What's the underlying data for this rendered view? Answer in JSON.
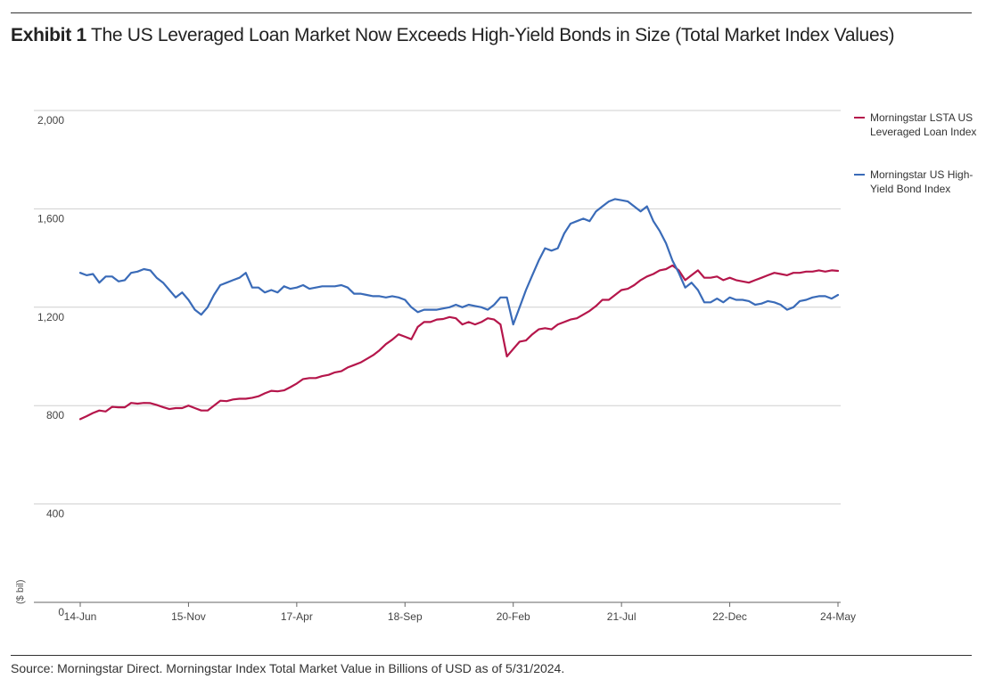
{
  "title": {
    "exhibit": "Exhibit 1",
    "text": "The US Leveraged Loan Market Now Exceeds High-Yield Bonds in Size (Total Market Index Values)"
  },
  "source": "Source: Morningstar Direct. Morningstar Index Total Market Value in Billions of USD as of 5/31/2024.",
  "colors": {
    "loan": "#b5164b",
    "bond": "#3a6bb8",
    "grid": "#cfcfcf",
    "axis": "#666666"
  },
  "chart_data": {
    "type": "line",
    "ylabel": "($ bil)",
    "ylim": [
      0,
      2000
    ],
    "yticks": [
      "0",
      "400",
      "800",
      "1,200",
      "1,600",
      "2,000"
    ],
    "ytick_values": [
      0,
      400,
      800,
      1200,
      1600,
      2000
    ],
    "xticks": [
      "14-Jun",
      "15-Nov",
      "17-Apr",
      "18-Sep",
      "20-Feb",
      "21-Jul",
      "22-Dec",
      "24-May"
    ],
    "grid": true,
    "legend_position": "right",
    "series": [
      {
        "name": "Morningstar LSTA US Leveraged Loan Index",
        "color": "#b5164b",
        "values": [
          745,
          757,
          770,
          780,
          776,
          795,
          793,
          793,
          811,
          808,
          811,
          810,
          803,
          794,
          786,
          790,
          790,
          800,
          790,
          780,
          780,
          800,
          820,
          818,
          825,
          828,
          828,
          832,
          838,
          850,
          860,
          858,
          862,
          875,
          890,
          908,
          912,
          912,
          920,
          925,
          935,
          940,
          955,
          965,
          975,
          990,
          1005,
          1025,
          1050,
          1068,
          1090,
          1080,
          1070,
          1120,
          1140,
          1140,
          1150,
          1152,
          1160,
          1155,
          1130,
          1140,
          1130,
          1140,
          1155,
          1150,
          1130,
          1000,
          1030,
          1060,
          1065,
          1090,
          1110,
          1115,
          1110,
          1130,
          1140,
          1150,
          1155,
          1170,
          1185,
          1205,
          1230,
          1230,
          1250,
          1270,
          1275,
          1290,
          1310,
          1325,
          1335,
          1350,
          1355,
          1370,
          1350,
          1310,
          1330,
          1350,
          1320,
          1320,
          1325,
          1310,
          1320,
          1310,
          1305,
          1300,
          1310,
          1320,
          1330,
          1340,
          1335,
          1330,
          1340,
          1340,
          1345,
          1345,
          1350,
          1345,
          1350,
          1348
        ]
      },
      {
        "name": "Morningstar US High-Yield Bond Index",
        "color": "#3a6bb8",
        "values": [
          1340,
          1330,
          1335,
          1300,
          1325,
          1325,
          1305,
          1310,
          1340,
          1345,
          1355,
          1350,
          1320,
          1300,
          1270,
          1240,
          1260,
          1230,
          1190,
          1170,
          1200,
          1250,
          1290,
          1300,
          1310,
          1320,
          1340,
          1280,
          1280,
          1260,
          1270,
          1260,
          1285,
          1275,
          1280,
          1290,
          1275,
          1280,
          1285,
          1285,
          1285,
          1290,
          1280,
          1255,
          1255,
          1250,
          1245,
          1245,
          1240,
          1245,
          1240,
          1230,
          1200,
          1180,
          1190,
          1190,
          1190,
          1195,
          1200,
          1210,
          1200,
          1210,
          1205,
          1200,
          1190,
          1210,
          1240,
          1240,
          1130,
          1200,
          1270,
          1330,
          1390,
          1440,
          1430,
          1440,
          1500,
          1540,
          1550,
          1560,
          1550,
          1590,
          1610,
          1630,
          1640,
          1635,
          1630,
          1610,
          1590,
          1610,
          1550,
          1510,
          1460,
          1390,
          1340,
          1280,
          1300,
          1270,
          1220,
          1220,
          1235,
          1220,
          1240,
          1230,
          1230,
          1225,
          1210,
          1215,
          1225,
          1220,
          1210,
          1190,
          1200,
          1225,
          1230,
          1240,
          1245,
          1245,
          1235,
          1250
        ]
      }
    ]
  }
}
